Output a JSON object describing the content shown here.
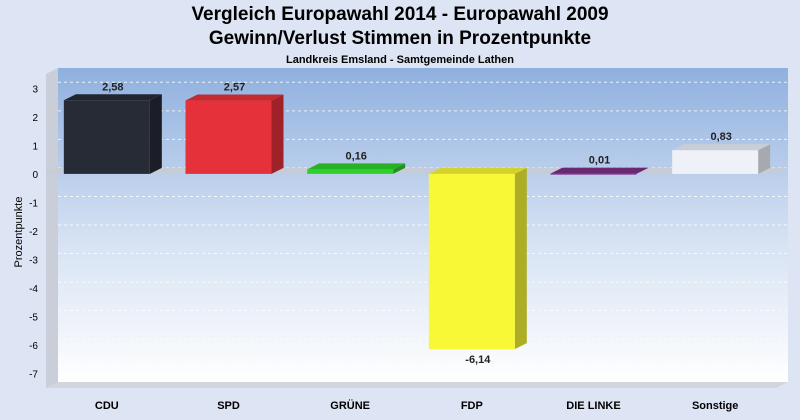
{
  "chart_data": {
    "type": "bar",
    "title": "Vergleich Europawahl 2014 - Europawahl 2009",
    "title2": "Gewinn/Verlust Stimmen in Prozentpunkte",
    "subtitle": "Landkreis Emsland - Samtgemeinde Lathen",
    "ylabel": "Prozentpunkte",
    "ylim": [
      -7.5,
      3.5
    ],
    "yticks": [
      3,
      2,
      1,
      0,
      -1,
      -2,
      -3,
      -4,
      -5,
      -6,
      -7
    ],
    "grid": true,
    "categories": [
      "CDU",
      "SPD",
      "GRÜNE",
      "FDP",
      "DIE LINKE",
      "Sonstige"
    ],
    "values": [
      2.58,
      2.57,
      0.16,
      -6.14,
      0.01,
      0.83
    ],
    "value_labels": [
      "2,58",
      "2,57",
      "0,16",
      "-6,14",
      "0,01",
      "0,83"
    ],
    "colors": [
      "#262b36",
      "#e5313a",
      "#2fd02c",
      "#f9f836",
      "#7c2f86",
      "#eef1f8"
    ]
  }
}
